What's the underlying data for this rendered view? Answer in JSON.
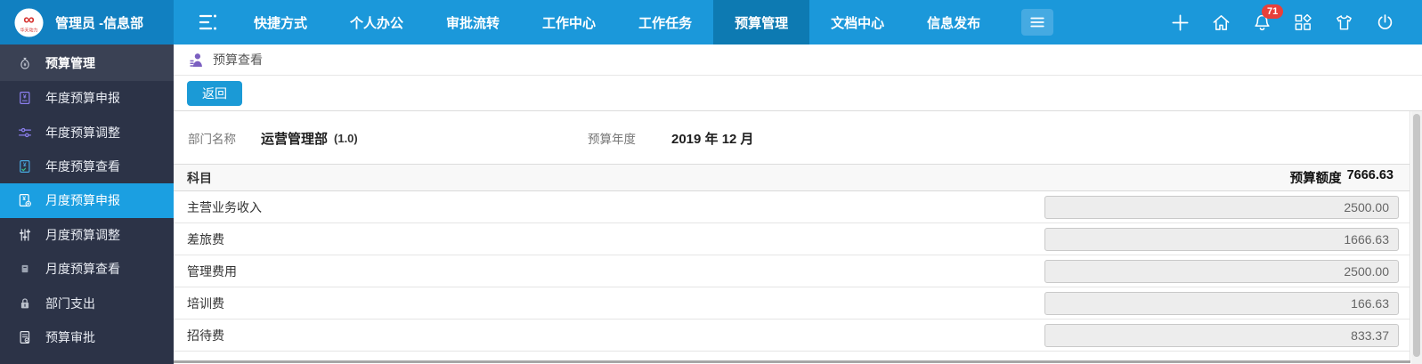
{
  "topbar": {
    "brand": {
      "logo_icon": "huatian-logo-icon",
      "logo_text": "华天动力",
      "user": "管理员 -信息部"
    },
    "collapse_icon": "menu-collapse-icon",
    "nav_items": [
      {
        "label": "快捷方式",
        "active": false
      },
      {
        "label": "个人办公",
        "active": false
      },
      {
        "label": "审批流转",
        "active": false
      },
      {
        "label": "工作中心",
        "active": false
      },
      {
        "label": "工作任务",
        "active": false
      },
      {
        "label": "预算管理",
        "active": true
      },
      {
        "label": "文档中心",
        "active": false
      },
      {
        "label": "信息发布",
        "active": false
      }
    ],
    "more_icon": "hamburger-icon",
    "actions": [
      {
        "name": "add",
        "icon": "plus-icon"
      },
      {
        "name": "home",
        "icon": "home-icon"
      },
      {
        "name": "notifications",
        "icon": "bell-icon",
        "badge": "71"
      },
      {
        "name": "apps",
        "icon": "apps-grid-icon"
      },
      {
        "name": "theme",
        "icon": "tshirt-icon"
      },
      {
        "name": "logout",
        "icon": "power-icon"
      }
    ]
  },
  "sidebar": {
    "header": {
      "label": "预算管理",
      "icon": "moneybag-icon"
    },
    "items": [
      {
        "label": "年度预算申报",
        "icon": "doc-yen-purple-icon",
        "active": false
      },
      {
        "label": "年度预算调整",
        "icon": "tune-horizontal-icon",
        "active": false
      },
      {
        "label": "年度预算查看",
        "icon": "doc-yen-blue-icon",
        "active": false
      },
      {
        "label": "月度预算申报",
        "icon": "doc-yen-white-icon",
        "active": true
      },
      {
        "label": "月度预算调整",
        "icon": "tune-vertical-icon",
        "active": false
      },
      {
        "label": "月度预算查看",
        "icon": "mini-square-icon",
        "active": false
      },
      {
        "label": "部门支出",
        "icon": "padlock-icon",
        "active": false
      },
      {
        "label": "预算审批",
        "icon": "doc-approve-icon",
        "active": false
      }
    ]
  },
  "main": {
    "breadcrumb": {
      "icon": "person-list-icon",
      "title": "预算查看"
    },
    "toolbar": {
      "back_label": "返回"
    },
    "form": {
      "dept_label": "部门名称",
      "dept_value": "运营管理部",
      "dept_version": "(1.0)",
      "year_label": "预算年度",
      "year_value": "2019 年 12 月"
    },
    "table": {
      "subject_header": "科目",
      "quota_label": "预算额度",
      "quota_total": "7666.63",
      "rows": [
        {
          "label": "主营业务收入",
          "value": "2500.00"
        },
        {
          "label": "差旅费",
          "value": "1666.63"
        },
        {
          "label": "管理费用",
          "value": "2500.00"
        },
        {
          "label": "培训费",
          "value": "166.63"
        },
        {
          "label": "招待费",
          "value": "833.37"
        }
      ]
    }
  },
  "colors": {
    "topbar_blue": "#1b98da",
    "topbar_brand_blue": "#1180c1",
    "active_tab_blue": "#0d7ab2",
    "sidebar_dark": "#2c3347",
    "sidebar_active_blue": "#1b9fe1",
    "badge_red": "#e8403a",
    "button_blue": "#1b9ad6"
  }
}
